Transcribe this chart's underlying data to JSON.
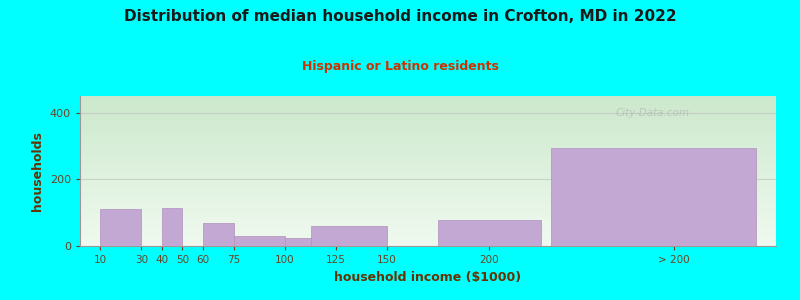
{
  "title": "Distribution of median household income in Crofton, MD in 2022",
  "subtitle": "Hispanic or Latino residents",
  "xlabel": "household income ($1000)",
  "ylabel": "households",
  "background_color": "#00FFFF",
  "plot_bg_top": "#cce8cc",
  "plot_bg_bottom": "#f0faf0",
  "bar_color": "#C4A8D4",
  "bar_edge_color": "#B090BC",
  "title_color": "#1a1a1a",
  "subtitle_color": "#CC3300",
  "axis_label_color": "#663300",
  "tick_label_color": "#664422",
  "watermark": "City-Data.com",
  "ylim": [
    0,
    450
  ],
  "yticks": [
    0,
    200,
    400
  ],
  "grid_color": "#bbbbbb",
  "grid_alpha": 0.6,
  "bar_data": [
    [
      10,
      20,
      110
    ],
    [
      40,
      10,
      115
    ],
    [
      60,
      15,
      68
    ],
    [
      75,
      25,
      30
    ],
    [
      100,
      25,
      25
    ],
    [
      113,
      37,
      60
    ],
    [
      175,
      50,
      78
    ],
    [
      230,
      100,
      295
    ]
  ],
  "xtick_pos": [
    10,
    30,
    40,
    50,
    60,
    75,
    100,
    125,
    150,
    200,
    290
  ],
  "xtick_labels": [
    "10",
    "30",
    "40",
    "50",
    "60",
    "75",
    "100",
    "125",
    "150",
    "200",
    "> 200"
  ],
  "xlim": [
    0,
    340
  ]
}
